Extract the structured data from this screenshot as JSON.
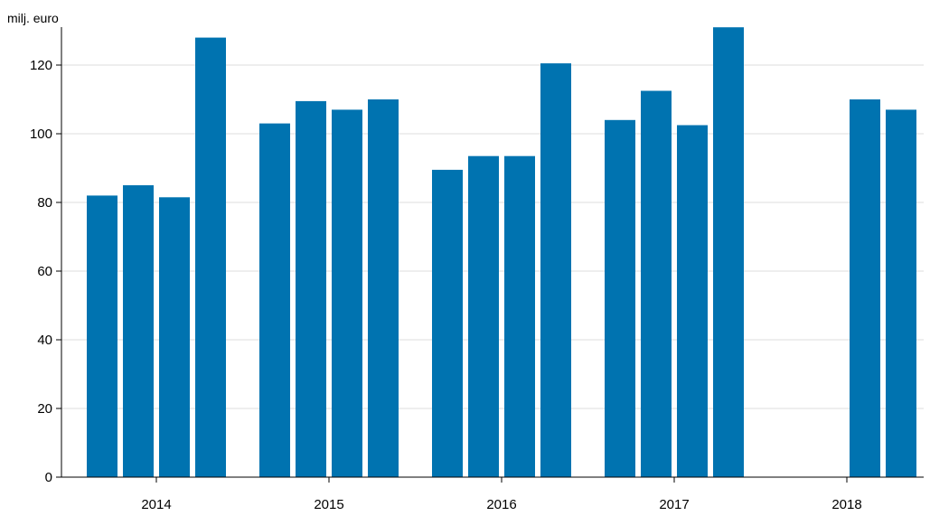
{
  "chart_data": {
    "type": "bar",
    "ylabel": "milj. euro",
    "ylim": [
      0,
      130
    ],
    "yticks": [
      0,
      20,
      40,
      60,
      80,
      100,
      120
    ],
    "grid": true,
    "legend": "none",
    "bar_color": "#0073b0",
    "groups": [
      {
        "label": "2014",
        "values": [
          82,
          85,
          81.5,
          128
        ]
      },
      {
        "label": "2015",
        "values": [
          103,
          109.5,
          107,
          110
        ]
      },
      {
        "label": "2016",
        "values": [
          89.5,
          93.5,
          93.5,
          120.5
        ]
      },
      {
        "label": "2017",
        "values": [
          104,
          112.5,
          102.5,
          131
        ]
      },
      {
        "label": "2018",
        "values": [
          null,
          null,
          110,
          107
        ]
      }
    ]
  }
}
